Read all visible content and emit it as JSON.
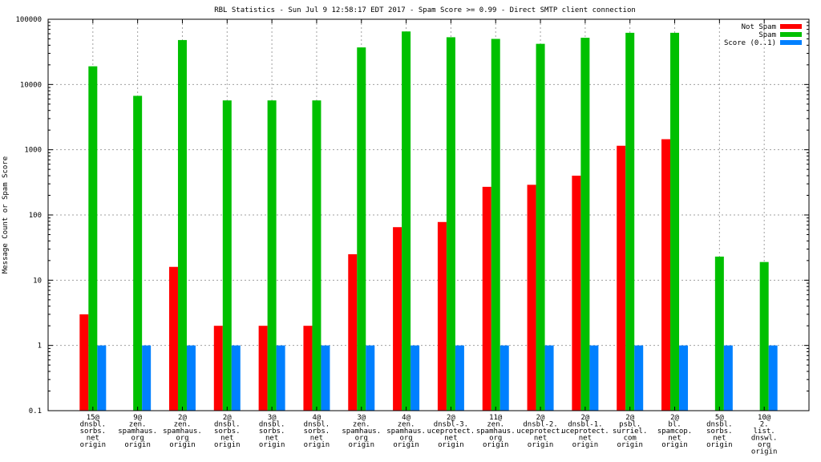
{
  "chart_data": {
    "type": "bar",
    "title": "RBL Statistics - Sun Jul  9 12:58:17 EDT 2017 - Spam Score >= 0.99 - Direct SMTP client connection",
    "xlabel": "",
    "ylabel": "Message Count or Spam Score",
    "yscale": "log",
    "ylim": [
      0.1,
      100000
    ],
    "yticks": [
      "0.1",
      "1",
      "10",
      "100",
      "1000",
      "10000",
      "100000"
    ],
    "grid": true,
    "legend_position": "top-right",
    "categories": [
      [
        "15@",
        "dnsbl.",
        "sorbs.",
        "net",
        "origin"
      ],
      [
        "9@",
        "zen.",
        "spamhaus.",
        "org",
        "origin"
      ],
      [
        "2@",
        "zen.",
        "spamhaus.",
        "org",
        "origin"
      ],
      [
        "2@",
        "dnsbl.",
        "sorbs.",
        "net",
        "origin"
      ],
      [
        "3@",
        "dnsbl.",
        "sorbs.",
        "net",
        "origin"
      ],
      [
        "4@",
        "dnsbl.",
        "sorbs.",
        "net",
        "origin"
      ],
      [
        "3@",
        "zen.",
        "spamhaus.",
        "org",
        "origin"
      ],
      [
        "4@",
        "zen.",
        "spamhaus.",
        "org",
        "origin"
      ],
      [
        "2@",
        "dnsbl-3.",
        "uceprotect.",
        "net",
        "origin"
      ],
      [
        "11@",
        "zen.",
        "spamhaus.",
        "org",
        "origin"
      ],
      [
        "2@",
        "dnsbl-2.",
        "uceprotect.",
        "net",
        "origin"
      ],
      [
        "2@",
        "dnsbl-1.",
        "uceprotect.",
        "net",
        "origin"
      ],
      [
        "2@",
        "psbl.",
        "surriel.",
        "com",
        "origin"
      ],
      [
        "2@",
        "bl.",
        "spamcop.",
        "net",
        "origin"
      ],
      [
        "5@",
        "dnsbl.",
        "sorbs.",
        "net",
        "origin"
      ],
      [
        "10@",
        "2.",
        "list.",
        "dnswl.",
        "org",
        "origin"
      ]
    ],
    "series": [
      {
        "name": "Not Spam",
        "color": "#ff0000",
        "values": [
          3,
          null,
          16,
          2,
          2,
          2,
          25,
          65,
          78,
          270,
          290,
          400,
          1150,
          1450,
          null,
          null
        ]
      },
      {
        "name": "Spam",
        "color": "#00c000",
        "values": [
          19000,
          6700,
          48000,
          5700,
          5700,
          5700,
          37000,
          65000,
          53000,
          50000,
          42000,
          52000,
          62000,
          62000,
          23,
          19
        ]
      },
      {
        "name": "Score (0..1)",
        "color": "#0080ff",
        "values": [
          1,
          1,
          1,
          1,
          1,
          1,
          1,
          1,
          1,
          1,
          1,
          1,
          1,
          1,
          1,
          1
        ]
      }
    ]
  }
}
